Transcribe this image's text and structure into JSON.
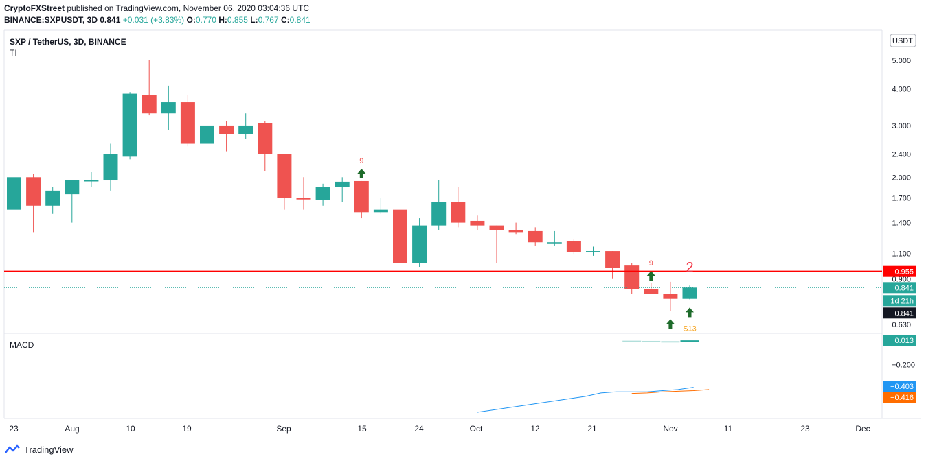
{
  "header": {
    "publisher": "CryptoFXStreet",
    "published_text": "published on TradingView.com, November 06, 2020 03:04:36 UTC",
    "symbol": "BINANCE:SXPUSDT, 3D",
    "last": "0.841",
    "change": "+0.031 (+3.83%)",
    "o_label": "O:",
    "o": "0.770",
    "h_label": "H:",
    "h": "0.855",
    "l_label": "L:",
    "l": "0.767",
    "c_label": "C:",
    "c": "0.841"
  },
  "legend": {
    "title": "SXP / TetherUS, 3D, BINANCE",
    "indicator": "TI",
    "macd": "MACD"
  },
  "currency": "USDT",
  "colors": {
    "up": "#26a69a",
    "down": "#ef5350",
    "resistance": "#ff0000",
    "arrow": "#1e6b2b",
    "macd_line": "#2196f3",
    "signal_line": "#ff6d00"
  },
  "chart_data": {
    "type": "candlestick",
    "title": "SXP / TetherUS, 3D, BINANCE",
    "y_scale": "log",
    "price_ticks": [
      "5.000",
      "4.000",
      "3.000",
      "2.400",
      "2.000",
      "1.700",
      "1.400",
      "1.100",
      "0.900",
      "0.630"
    ],
    "time_ticks": [
      "23",
      "Aug",
      "10",
      "19",
      "Sep",
      "15",
      "24",
      "Oct",
      "12",
      "21",
      "Nov",
      "11",
      "23",
      "Dec"
    ],
    "candles": [
      {
        "o": 1.55,
        "h": 2.3,
        "l": 1.45,
        "c": 2.0
      },
      {
        "o": 2.0,
        "h": 2.05,
        "l": 1.3,
        "c": 1.6
      },
      {
        "o": 1.6,
        "h": 1.85,
        "l": 1.5,
        "c": 1.8
      },
      {
        "o": 1.75,
        "h": 1.95,
        "l": 1.4,
        "c": 1.95
      },
      {
        "o": 1.95,
        "h": 2.08,
        "l": 1.85,
        "c": 1.95
      },
      {
        "o": 1.95,
        "h": 2.6,
        "l": 1.8,
        "c": 2.4
      },
      {
        "o": 2.35,
        "h": 3.9,
        "l": 2.3,
        "c": 3.85
      },
      {
        "o": 3.8,
        "h": 5.0,
        "l": 3.25,
        "c": 3.3
      },
      {
        "o": 3.3,
        "h": 4.1,
        "l": 2.9,
        "c": 3.6
      },
      {
        "o": 3.6,
        "h": 3.8,
        "l": 2.55,
        "c": 2.6
      },
      {
        "o": 2.6,
        "h": 3.05,
        "l": 2.35,
        "c": 3.0
      },
      {
        "o": 3.0,
        "h": 3.1,
        "l": 2.45,
        "c": 2.8
      },
      {
        "o": 2.8,
        "h": 3.3,
        "l": 2.7,
        "c": 3.0
      },
      {
        "o": 3.05,
        "h": 3.1,
        "l": 2.1,
        "c": 2.4
      },
      {
        "o": 2.4,
        "h": 2.4,
        "l": 1.55,
        "c": 1.7
      },
      {
        "o": 1.7,
        "h": 2.0,
        "l": 1.55,
        "c": 1.68
      },
      {
        "o": 1.67,
        "h": 1.9,
        "l": 1.6,
        "c": 1.85
      },
      {
        "o": 1.85,
        "h": 2.0,
        "l": 1.65,
        "c": 1.93
      },
      {
        "o": 1.94,
        "h": 1.94,
        "l": 1.45,
        "c": 1.52
      },
      {
        "o": 1.52,
        "h": 1.7,
        "l": 1.5,
        "c": 1.55
      },
      {
        "o": 1.55,
        "h": 1.56,
        "l": 1.0,
        "c": 1.02
      },
      {
        "o": 1.02,
        "h": 1.45,
        "l": 0.99,
        "c": 1.37
      },
      {
        "o": 1.37,
        "h": 1.95,
        "l": 1.32,
        "c": 1.65
      },
      {
        "o": 1.65,
        "h": 1.85,
        "l": 1.35,
        "c": 1.4
      },
      {
        "o": 1.42,
        "h": 1.48,
        "l": 1.32,
        "c": 1.37
      },
      {
        "o": 1.37,
        "h": 1.37,
        "l": 1.02,
        "c": 1.32
      },
      {
        "o": 1.32,
        "h": 1.4,
        "l": 1.28,
        "c": 1.3
      },
      {
        "o": 1.31,
        "h": 1.35,
        "l": 1.17,
        "c": 1.2
      },
      {
        "o": 1.2,
        "h": 1.31,
        "l": 1.17,
        "c": 1.2
      },
      {
        "o": 1.21,
        "h": 1.23,
        "l": 1.09,
        "c": 1.11
      },
      {
        "o": 1.12,
        "h": 1.16,
        "l": 1.08,
        "c": 1.12
      },
      {
        "o": 1.12,
        "h": 1.12,
        "l": 0.9,
        "c": 0.98
      },
      {
        "o": 1.0,
        "h": 1.02,
        "l": 0.8,
        "c": 0.83
      },
      {
        "o": 0.83,
        "h": 0.87,
        "l": 0.8,
        "c": 0.8
      },
      {
        "o": 0.8,
        "h": 0.88,
        "l": 0.7,
        "c": 0.77
      },
      {
        "o": 0.77,
        "h": 0.855,
        "l": 0.767,
        "c": 0.841
      }
    ],
    "resistance": {
      "value": 0.955,
      "label": "0.955"
    },
    "last_price": {
      "value": 0.841,
      "label": "0.841",
      "countdown": "1d 21h",
      "close_label": "0.841"
    },
    "annotations": [
      {
        "text": "9",
        "candle": 18,
        "type": "count"
      },
      {
        "text": "9",
        "candle": 33,
        "type": "count"
      },
      {
        "text": "2",
        "candle": 35,
        "type": "marker"
      },
      {
        "text": "S13",
        "candle": 35,
        "type": "count"
      }
    ],
    "arrows": [
      18,
      33,
      34,
      35
    ],
    "macd": {
      "label": "MACD",
      "ticks": [
        "0.013",
        "-0.200",
        "-0.403",
        "-0.416"
      ],
      "current_histogram": "0.013",
      "current_macd": "−0.403",
      "current_signal": "−0.416",
      "tick_mid": "−0.200",
      "histogram": [
        0.01,
        0.008,
        0.006,
        0.013
      ],
      "macd_line": [
        -0.62,
        -0.6,
        -0.58,
        -0.56,
        -0.54,
        -0.52,
        -0.5,
        -0.48,
        -0.45,
        -0.44,
        -0.44,
        -0.44,
        -0.43,
        -0.42,
        -0.4
      ],
      "signal_line": [
        -0.455,
        -0.45,
        -0.44,
        -0.435,
        -0.43,
        -0.42
      ],
      "ylim": [
        -0.65,
        0.05
      ]
    }
  },
  "footer": {
    "brand": "TradingView"
  }
}
